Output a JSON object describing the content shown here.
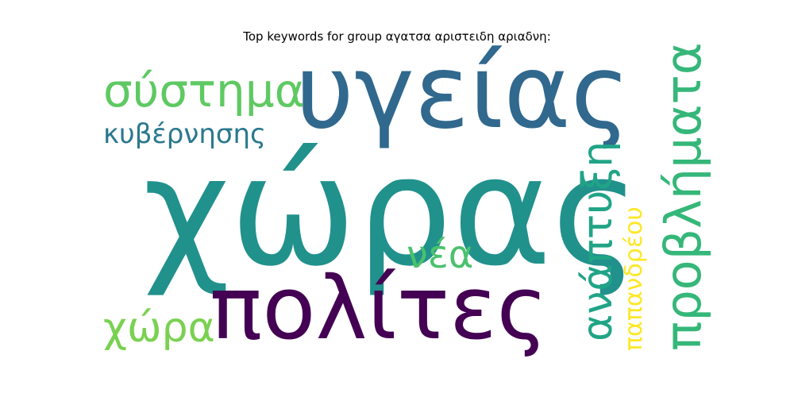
{
  "title": "Top keywords for group αγατσα αριστειδη αριαδνη:",
  "chart_data": {
    "type": "wordcloud",
    "title": "Top keywords for group αγατσα αριστειδη αριαδνη:",
    "words": [
      {
        "text": "χώρας",
        "color": "#21918c",
        "rank": 1
      },
      {
        "text": "υγείας",
        "color": "#31688e",
        "rank": 2
      },
      {
        "text": "πολίτες",
        "color": "#440154",
        "rank": 3
      },
      {
        "text": "σύστημα",
        "color": "#5ec962",
        "rank": 4
      },
      {
        "text": "προβλήματα",
        "color": "#35b779",
        "rank": 5
      },
      {
        "text": "ανάπτυξη",
        "color": "#20a486",
        "rank": 6
      },
      {
        "text": "χώρα",
        "color": "#7ad151",
        "rank": 7
      },
      {
        "text": "κυβέρνησης",
        "color": "#2a788e",
        "rank": 8
      },
      {
        "text": "νέα",
        "color": "#4ac16d",
        "rank": 9
      },
      {
        "text": "παπανδρέου",
        "color": "#fde725",
        "rank": 10
      }
    ]
  }
}
